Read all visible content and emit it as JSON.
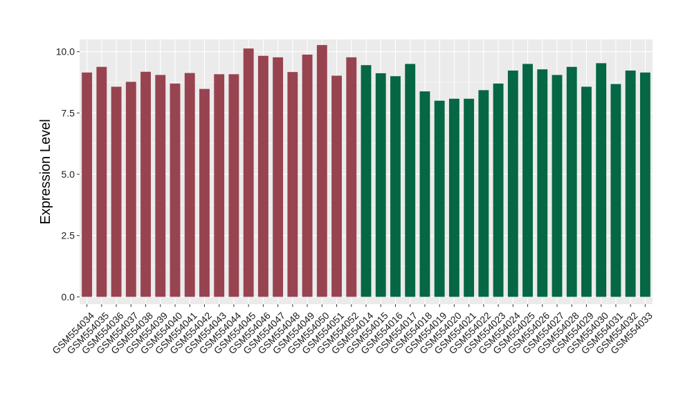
{
  "chart_data": {
    "type": "bar",
    "title": "",
    "xlabel": "",
    "ylabel": "Expression Level",
    "ylim": [
      -0.3,
      10.5
    ],
    "yticks": [
      0.0,
      2.5,
      5.0,
      7.5,
      10.0
    ],
    "ytick_labels": [
      "0.0",
      "2.5",
      "5.0",
      "7.5",
      "10.0"
    ],
    "grid": true,
    "panel_background": "#ebebeb",
    "grid_color": "#ffffff",
    "categories": [
      "GSM554034",
      "GSM554035",
      "GSM554036",
      "GSM554037",
      "GSM554038",
      "GSM554039",
      "GSM554040",
      "GSM554041",
      "GSM554042",
      "GSM554043",
      "GSM554044",
      "GSM554045",
      "GSM554046",
      "GSM554047",
      "GSM554048",
      "GSM554049",
      "GSM554050",
      "GSM554051",
      "GSM554052",
      "GSM554014",
      "GSM554015",
      "GSM554016",
      "GSM554017",
      "GSM554018",
      "GSM554019",
      "GSM554020",
      "GSM554021",
      "GSM554022",
      "GSM554023",
      "GSM554024",
      "GSM554025",
      "GSM554026",
      "GSM554027",
      "GSM554028",
      "GSM554029",
      "GSM554030",
      "GSM554031",
      "GSM554032",
      "GSM554033"
    ],
    "values": [
      9.15,
      9.38,
      8.57,
      8.77,
      9.18,
      9.05,
      8.7,
      9.13,
      8.48,
      9.08,
      9.08,
      10.13,
      9.83,
      9.77,
      9.17,
      9.88,
      10.27,
      9.02,
      9.77,
      9.45,
      9.12,
      9.0,
      9.5,
      8.38,
      8.0,
      8.08,
      8.08,
      8.43,
      8.7,
      9.23,
      9.5,
      9.28,
      9.05,
      9.38,
      8.57,
      9.53,
      8.68,
      9.23,
      9.15
    ],
    "bar_colors": [
      "#984350",
      "#984350",
      "#984350",
      "#984350",
      "#984350",
      "#984350",
      "#984350",
      "#984350",
      "#984350",
      "#984350",
      "#984350",
      "#984350",
      "#984350",
      "#984350",
      "#984350",
      "#984350",
      "#984350",
      "#984350",
      "#984350",
      "#056744",
      "#056744",
      "#056744",
      "#056744",
      "#056744",
      "#056744",
      "#056744",
      "#056744",
      "#056744",
      "#056744",
      "#056744",
      "#056744",
      "#056744",
      "#056744",
      "#056744",
      "#056744",
      "#056744",
      "#056744",
      "#056744",
      "#056744"
    ]
  }
}
